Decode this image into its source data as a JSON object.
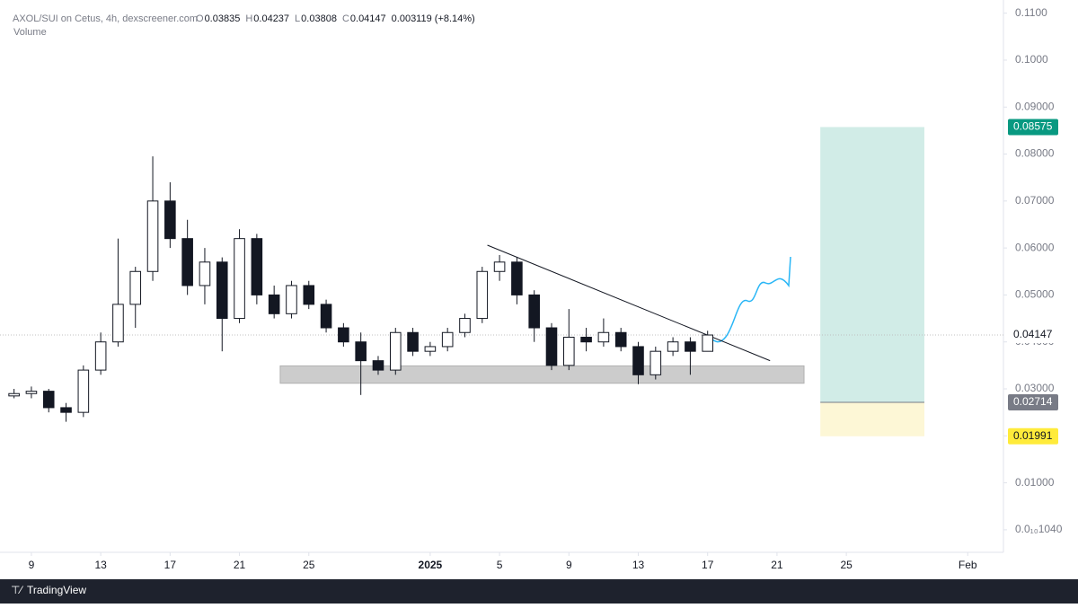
{
  "chart_data": {
    "type": "candlestick",
    "legend": "AXOL/SUI on Cetus, 4h, dexscreener.com",
    "ohlc_keys": [
      "O",
      "H",
      "L",
      "C"
    ],
    "ohlc_values": [
      0.03835,
      0.04237,
      0.03808,
      0.04147
    ],
    "change": "0.003119 (+8.14%)",
    "volume_label": "Volume",
    "footer": "TradingView",
    "up_color": "#ffffff",
    "down_color": "#131722",
    "border_color": "#131722",
    "x": [
      -1,
      0,
      1,
      2,
      3,
      4,
      5,
      6,
      7,
      8,
      9,
      10,
      11,
      12,
      13,
      14,
      15,
      16,
      17,
      18,
      19,
      20,
      21,
      22,
      23,
      24,
      25,
      26,
      27,
      28,
      29,
      30,
      31,
      32,
      33,
      34,
      35,
      36,
      37,
      38,
      39
    ],
    "open": [
      0.0285,
      0.029,
      0.0295,
      0.026,
      0.025,
      0.034,
      0.04,
      0.048,
      0.055,
      0.07,
      0.062,
      0.052,
      0.057,
      0.045,
      0.062,
      0.05,
      0.046,
      0.052,
      0.048,
      0.043,
      0.04,
      0.036,
      0.034,
      0.042,
      0.038,
      0.039,
      0.042,
      0.045,
      0.055,
      0.057,
      0.05,
      0.043,
      0.035,
      0.041,
      0.04,
      0.042,
      0.039,
      0.033,
      0.038,
      0.04,
      0.038
    ],
    "high": [
      0.03,
      0.0305,
      0.03,
      0.027,
      0.035,
      0.042,
      0.062,
      0.056,
      0.0795,
      0.074,
      0.066,
      0.06,
      0.058,
      0.064,
      0.063,
      0.052,
      0.053,
      0.053,
      0.049,
      0.044,
      0.042,
      0.037,
      0.043,
      0.043,
      0.04,
      0.043,
      0.046,
      0.056,
      0.0585,
      0.058,
      0.051,
      0.044,
      0.047,
      0.043,
      0.045,
      0.043,
      0.04,
      0.039,
      0.041,
      0.041,
      0.04237
    ],
    "low": [
      0.028,
      0.028,
      0.025,
      0.023,
      0.024,
      0.033,
      0.039,
      0.043,
      0.053,
      0.06,
      0.05,
      0.048,
      0.038,
      0.044,
      0.048,
      0.045,
      0.045,
      0.047,
      0.042,
      0.039,
      0.0287,
      0.033,
      0.033,
      0.037,
      0.037,
      0.038,
      0.041,
      0.044,
      0.053,
      0.048,
      0.04,
      0.034,
      0.034,
      0.038,
      0.039,
      0.038,
      0.031,
      0.032,
      0.037,
      0.033,
      0.03808
    ],
    "close": [
      0.029,
      0.0295,
      0.026,
      0.025,
      0.034,
      0.04,
      0.048,
      0.055,
      0.07,
      0.062,
      0.052,
      0.057,
      0.045,
      0.062,
      0.05,
      0.046,
      0.052,
      0.048,
      0.043,
      0.04,
      0.036,
      0.034,
      0.042,
      0.038,
      0.039,
      0.042,
      0.045,
      0.055,
      0.057,
      0.05,
      0.043,
      0.035,
      0.041,
      0.04,
      0.042,
      0.039,
      0.033,
      0.038,
      0.04,
      0.038,
      0.04147
    ],
    "xlim": [
      -1.81,
      56.06
    ],
    "ylim": [
      -0.0048,
      0.1128
    ],
    "xticks": [
      {
        "value": 0,
        "label": "9"
      },
      {
        "value": 4,
        "label": "13"
      },
      {
        "value": 8,
        "label": "17"
      },
      {
        "value": 12,
        "label": "21"
      },
      {
        "value": 16,
        "label": "25"
      },
      {
        "value": 23,
        "label": "2025"
      },
      {
        "value": 27,
        "label": "5"
      },
      {
        "value": 31,
        "label": "9"
      },
      {
        "value": 35,
        "label": "13"
      },
      {
        "value": 39,
        "label": "17"
      },
      {
        "value": 43,
        "label": "21"
      },
      {
        "value": 47,
        "label": "25"
      },
      {
        "value": 54,
        "label": "Feb"
      }
    ],
    "yticks": [
      {
        "value": 0.11,
        "label": "0.1100"
      },
      {
        "value": 0.1,
        "label": "0.1000"
      },
      {
        "value": 0.09,
        "label": "0.09000"
      },
      {
        "value": 0.08,
        "label": "0.08000"
      },
      {
        "value": 0.07,
        "label": "0.07000"
      },
      {
        "value": 0.06,
        "label": "0.06000"
      },
      {
        "value": 0.05,
        "label": "0.05000"
      },
      {
        "value": 0.04,
        "label": "0.04000"
      },
      {
        "value": 0.03,
        "label": "0.03000"
      },
      {
        "value": 0.02,
        "label": "0.02000"
      },
      {
        "value": 0.01,
        "label": "0.01000"
      },
      {
        "value": 1.04e-11,
        "label": "0.0₁₀1040"
      }
    ],
    "last_price": 0.04147,
    "support_zone": {
      "x": [
        14.35,
        44.56
      ],
      "y": [
        0.0312,
        0.0349
      ],
      "color": "#cccccc"
    },
    "trend_line": {
      "x": [
        26.3,
        42.6
      ],
      "y": [
        0.0606,
        0.036
      ]
    },
    "position": {
      "x": [
        45.5,
        51.5
      ],
      "target": 0.08575,
      "entry": 0.02714,
      "stop": 0.01991,
      "target_color": "#d1ece7",
      "stop_color": "#fdf7d6",
      "target_tag": "#089981",
      "entry_tag": "#787b86",
      "stop_tag": "#ffeb3b"
    }
  }
}
